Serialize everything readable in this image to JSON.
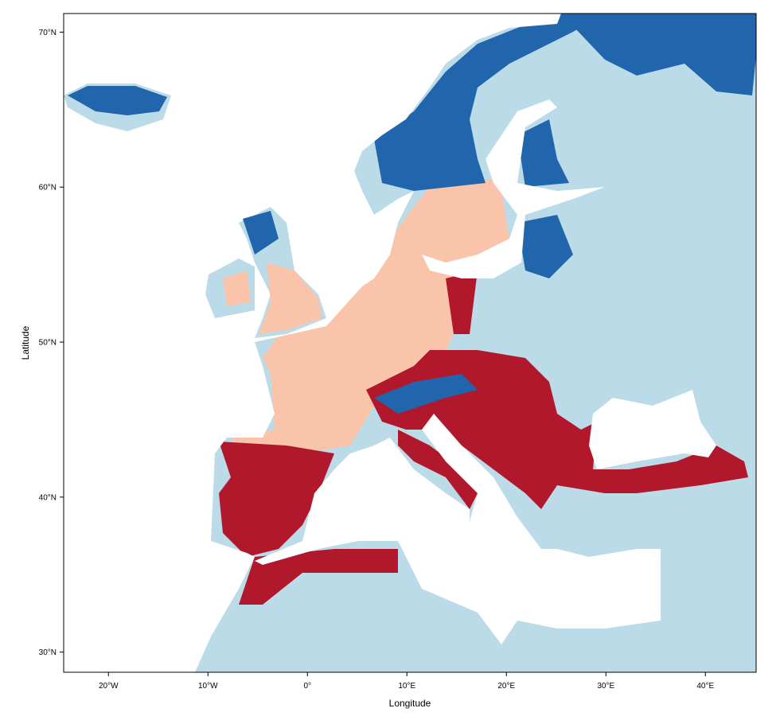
{
  "chart_data": {
    "type": "map",
    "x_label": "Longitude",
    "y_label": "Latitude",
    "xlim": [
      -24.5,
      45.1
    ],
    "ylim": [
      28.7,
      71.2
    ],
    "xticks": [
      {
        "value": -20,
        "label": "20°W"
      },
      {
        "value": -10,
        "label": "10°W"
      },
      {
        "value": 0,
        "label": "0°"
      },
      {
        "value": 10,
        "label": "10°E"
      },
      {
        "value": 20,
        "label": "20°E"
      },
      {
        "value": 30,
        "label": "30°E"
      },
      {
        "value": 40,
        "label": "40°E"
      }
    ],
    "yticks": [
      {
        "value": 30,
        "label": "30°N"
      },
      {
        "value": 40,
        "label": "40°N"
      },
      {
        "value": 50,
        "label": "50°N"
      },
      {
        "value": 60,
        "label": "60°N"
      },
      {
        "value": 70,
        "label": "70°N"
      }
    ]
  }
}
